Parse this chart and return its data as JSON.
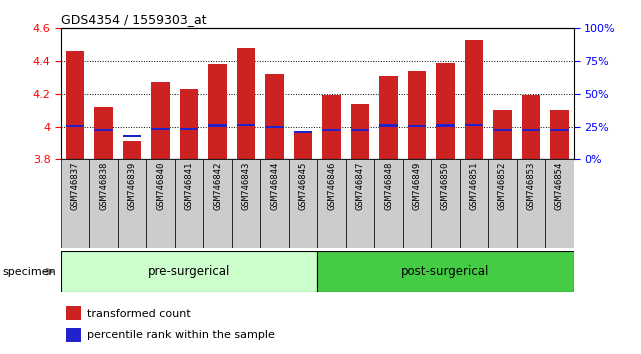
{
  "title": "GDS4354 / 1559303_at",
  "samples": [
    "GSM746837",
    "GSM746838",
    "GSM746839",
    "GSM746840",
    "GSM746841",
    "GSM746842",
    "GSM746843",
    "GSM746844",
    "GSM746845",
    "GSM746846",
    "GSM746847",
    "GSM746848",
    "GSM746849",
    "GSM746850",
    "GSM746851",
    "GSM746852",
    "GSM746853",
    "GSM746854"
  ],
  "red_values": [
    4.46,
    4.12,
    3.91,
    4.27,
    4.23,
    4.38,
    4.48,
    4.32,
    3.97,
    4.19,
    4.14,
    4.31,
    4.34,
    4.39,
    4.53,
    4.1,
    4.19,
    4.1
  ],
  "blue_values": [
    3.995,
    3.975,
    3.935,
    3.98,
    3.977,
    4.0,
    4.005,
    3.993,
    3.96,
    3.975,
    3.975,
    4.0,
    3.995,
    4.0,
    4.005,
    3.972,
    3.97,
    3.972
  ],
  "ymin": 3.8,
  "ymax": 4.6,
  "yticks_left": [
    3.8,
    4.0,
    4.2,
    4.4,
    4.6
  ],
  "ytick_labels_left": [
    "3.8",
    "4",
    "4.2",
    "4.4",
    "4.6"
  ],
  "right_ytick_pcts": [
    0,
    25,
    50,
    75,
    100
  ],
  "right_ylabels": [
    "0%",
    "25%",
    "50%",
    "75%",
    "100%"
  ],
  "pre_surgical_count": 9,
  "post_surgical_count": 9,
  "bar_width": 0.65,
  "red_color": "#cc2222",
  "blue_color": "#2222cc",
  "pre_surgical_color": "#ccffcc",
  "post_surgical_color": "#44cc44",
  "bar_base": 3.8,
  "blue_bar_height": 0.013,
  "xtick_bg_color": "#cccccc",
  "group_border_color": "#000000"
}
